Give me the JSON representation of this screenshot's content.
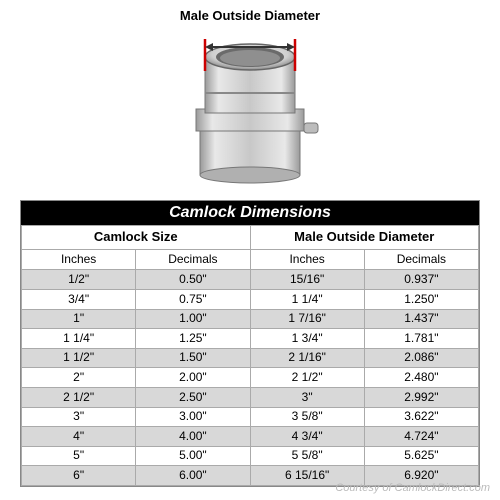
{
  "diagram": {
    "label": "Male Outside Diameter",
    "arrow_color": "#cc0000",
    "fitting_light": "#d9d9d9",
    "fitting_mid": "#bfbfbf",
    "fitting_dark": "#8a8a8a",
    "fitting_highlight": "#f2f2f2"
  },
  "table": {
    "title": "Camlock Dimensions",
    "title_bg": "#000000",
    "title_fg": "#ffffff",
    "border_color": "#aaaaaa",
    "row_odd_bg": "#d8d8d8",
    "row_even_bg": "#ffffff",
    "group_headers": [
      "Camlock Size",
      "Male Outside Diameter"
    ],
    "sub_headers": [
      "Inches",
      "Decimals",
      "Inches",
      "Decimals"
    ],
    "rows": [
      [
        "1/2\"",
        "0.50\"",
        "15/16\"",
        "0.937\""
      ],
      [
        "3/4\"",
        "0.75\"",
        "1 1/4\"",
        "1.250\""
      ],
      [
        "1\"",
        "1.00\"",
        "1 7/16\"",
        "1.437\""
      ],
      [
        "1 1/4\"",
        "1.25\"",
        "1 3/4\"",
        "1.781\""
      ],
      [
        "1 1/2\"",
        "1.50\"",
        "2 1/16\"",
        "2.086\""
      ],
      [
        "2\"",
        "2.00\"",
        "2 1/2\"",
        "2.480\""
      ],
      [
        "2 1/2\"",
        "2.50\"",
        "3\"",
        "2.992\""
      ],
      [
        "3\"",
        "3.00\"",
        "3 5/8\"",
        "3.622\""
      ],
      [
        "4\"",
        "4.00\"",
        "4 3/4\"",
        "4.724\""
      ],
      [
        "5\"",
        "5.00\"",
        "5 5/8\"",
        "5.625\""
      ],
      [
        "6\"",
        "6.00\"",
        "6 15/16\"",
        "6.920\""
      ]
    ]
  },
  "attribution": "Courtesy of CamlockDirect.com"
}
